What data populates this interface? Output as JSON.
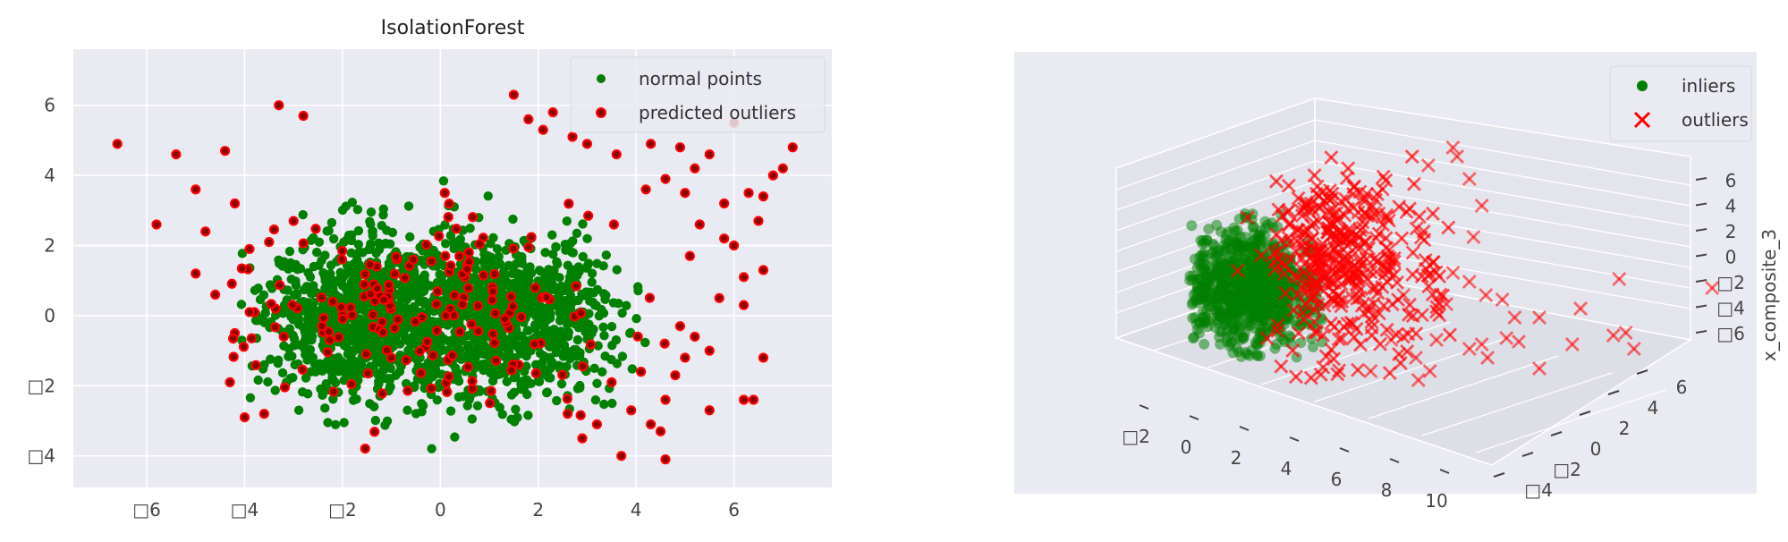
{
  "chart_data": [
    {
      "type": "scatter",
      "title": "IsolationForest",
      "xlabel": "",
      "ylabel": "",
      "xlim": [
        -7.5,
        8.0
      ],
      "ylim": [
        -4.9,
        7.6
      ],
      "xticks": [
        -6,
        -4,
        -2,
        0,
        2,
        4,
        6
      ],
      "xtick_labels": [
        "□6",
        "□4",
        "□2",
        "0",
        "2",
        "4",
        "6"
      ],
      "yticks": [
        -4,
        -2,
        0,
        2,
        4,
        6
      ],
      "ytick_labels": [
        "□4",
        "□2",
        "0",
        "2",
        "4",
        "6"
      ],
      "grid": true,
      "legend_position": "top-right",
      "series": [
        {
          "name": "normal points",
          "color": "#008000",
          "approx_count": 2000,
          "distribution": "two overlapping clusters around (-1.5, 0) and (1.5, 0), spread x≈[-4,4], y≈[-3.5,3.5]"
        },
        {
          "name": "predicted outliers",
          "color": "#8b0000",
          "edge": "#ff0000",
          "points": [
            [
              -6.6,
              4.9
            ],
            [
              -5.4,
              4.6
            ],
            [
              -4.4,
              4.7
            ],
            [
              -3.3,
              6.0
            ],
            [
              -2.8,
              5.7
            ],
            [
              -5.8,
              2.6
            ],
            [
              -5.0,
              3.6
            ],
            [
              -4.8,
              2.4
            ],
            [
              -5.0,
              1.2
            ],
            [
              -4.6,
              0.6
            ],
            [
              -4.3,
              -1.9
            ],
            [
              -4.0,
              -2.9
            ],
            [
              -3.6,
              -2.8
            ],
            [
              -4.2,
              3.2
            ],
            [
              -3.9,
              1.9
            ],
            [
              -3.5,
              2.1
            ],
            [
              -3.0,
              2.7
            ],
            [
              -3.8,
              0.1
            ],
            [
              -4.2,
              -0.5
            ],
            [
              -3.2,
              -0.6
            ],
            [
              1.5,
              6.3
            ],
            [
              1.8,
              5.6
            ],
            [
              2.3,
              5.8
            ],
            [
              2.1,
              5.3
            ],
            [
              2.7,
              5.1
            ],
            [
              3.0,
              4.9
            ],
            [
              3.6,
              4.6
            ],
            [
              4.3,
              4.9
            ],
            [
              4.9,
              4.8
            ],
            [
              5.5,
              4.6
            ],
            [
              5.2,
              4.2
            ],
            [
              6.0,
              5.5
            ],
            [
              6.3,
              3.5
            ],
            [
              6.6,
              3.4
            ],
            [
              7.0,
              4.2
            ],
            [
              7.2,
              4.8
            ],
            [
              6.8,
              4.0
            ],
            [
              4.6,
              3.9
            ],
            [
              4.2,
              3.6
            ],
            [
              5.0,
              3.5
            ],
            [
              5.8,
              3.2
            ],
            [
              6.5,
              2.7
            ],
            [
              5.3,
              2.6
            ],
            [
              5.8,
              2.2
            ],
            [
              6.0,
              2.0
            ],
            [
              6.2,
              1.1
            ],
            [
              6.6,
              1.3
            ],
            [
              5.1,
              1.7
            ],
            [
              5.7,
              0.5
            ],
            [
              6.2,
              0.3
            ],
            [
              5.2,
              -0.6
            ],
            [
              4.9,
              -0.3
            ],
            [
              5.0,
              -1.2
            ],
            [
              5.5,
              -1.0
            ],
            [
              4.8,
              -1.7
            ],
            [
              6.6,
              -1.2
            ],
            [
              6.2,
              -2.4
            ],
            [
              6.4,
              -2.4
            ],
            [
              5.5,
              -2.7
            ],
            [
              4.6,
              -2.4
            ],
            [
              4.5,
              -3.3
            ],
            [
              4.6,
              -4.1
            ],
            [
              3.7,
              -4.0
            ],
            [
              4.3,
              -3.1
            ],
            [
              3.2,
              -3.1
            ],
            [
              2.9,
              -3.5
            ],
            [
              3.9,
              -2.7
            ],
            [
              4.1,
              -1.6
            ],
            [
              3.5,
              -1.9
            ],
            [
              2.6,
              -2.8
            ],
            [
              -1.3,
              1.4
            ],
            [
              0.1,
              1.7
            ],
            [
              0.5,
              1.1
            ],
            [
              -1.0,
              -1.2
            ],
            [
              1.6,
              -1.4
            ],
            [
              -2.2,
              0.4
            ],
            [
              -0.3,
              -0.9
            ]
          ]
        }
      ]
    },
    {
      "type": "scatter3d",
      "title": "",
      "zlabel": "x_composite_3",
      "xticks": [
        -2,
        0,
        2,
        4,
        6,
        8,
        10
      ],
      "xtick_labels": [
        "□2",
        "0",
        "2",
        "4",
        "6",
        "8",
        "10"
      ],
      "yticks": [
        -4,
        -2,
        0,
        2,
        4,
        6
      ],
      "ytick_labels": [
        "□4",
        "□2",
        "0",
        "2",
        "4",
        "6"
      ],
      "zticks": [
        -6,
        -4,
        -2,
        0,
        2,
        4,
        6
      ],
      "ztick_labels": [
        "□6",
        "□4",
        "□2",
        "0",
        "2",
        "4",
        "6"
      ],
      "grid": true,
      "legend_position": "top-right",
      "series": [
        {
          "name": "inliers",
          "color": "#008000",
          "marker": "o",
          "distribution": "dense cluster near x≈-2..2"
        },
        {
          "name": "outliers",
          "color": "#ff0000",
          "marker": "x",
          "distribution": "cloud spreading toward x≈10"
        }
      ]
    }
  ]
}
